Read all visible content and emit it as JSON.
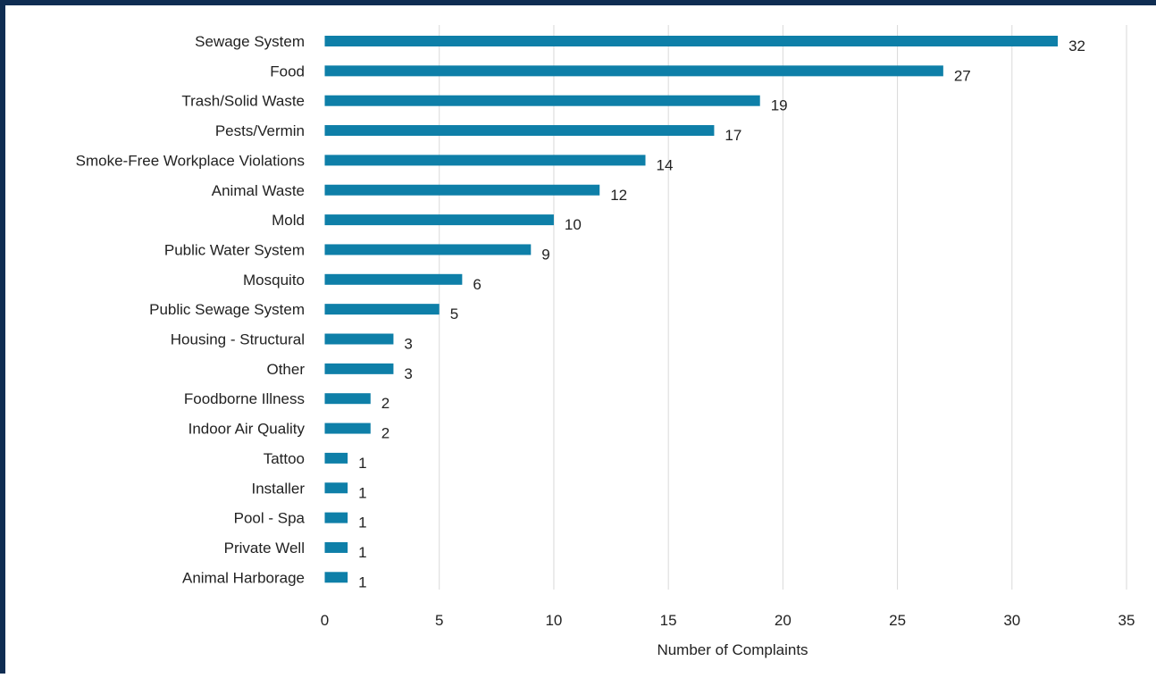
{
  "chart_data": {
    "type": "bar",
    "orientation": "horizontal",
    "categories": [
      "Sewage System",
      "Food",
      "Trash/Solid Waste",
      "Pests/Vermin",
      "Smoke-Free Workplace Violations",
      "Animal Waste",
      "Mold",
      "Public Water System",
      "Mosquito",
      "Public Sewage System",
      "Housing - Structural",
      "Other",
      "Foodborne Illness",
      "Indoor Air Quality",
      "Tattoo",
      "Installer",
      "Pool - Spa",
      "Private Well",
      "Animal Harborage"
    ],
    "values": [
      32,
      27,
      19,
      17,
      14,
      12,
      10,
      9,
      6,
      5,
      3,
      3,
      2,
      2,
      1,
      1,
      1,
      1,
      1
    ],
    "xlabel": "Number of Complaints",
    "xlim": [
      0,
      35
    ],
    "xticks": [
      "0",
      "5",
      "10",
      "15",
      "20",
      "25",
      "30",
      "35"
    ],
    "grid": "vertical",
    "data_labels": true,
    "bar_color": "#0e7fa8",
    "frame_color": "#0f2d52"
  }
}
